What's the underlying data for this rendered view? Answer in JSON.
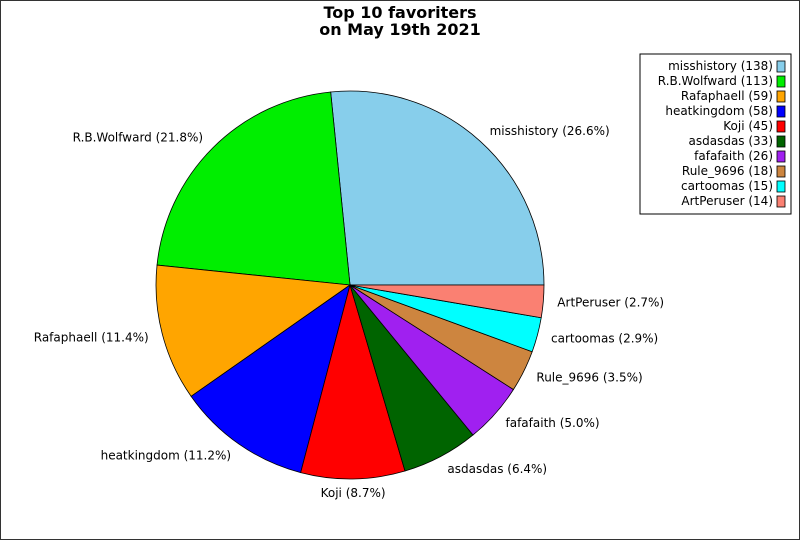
{
  "chart_data": {
    "type": "pie",
    "title_line1": "Top 10 favoriters",
    "title_line2": "on May 19th 2021",
    "slices": [
      {
        "name": "misshistory",
        "value": 138,
        "percent_label": "misshistory (26.6%)",
        "legend_label": "misshistory (138)",
        "color": "#87CEEB"
      },
      {
        "name": "R.B.Wolfward",
        "value": 113,
        "percent_label": "R.B.Wolfward (21.8%)",
        "legend_label": "R.B.Wolfward (113)",
        "color": "#00EE00"
      },
      {
        "name": "Rafaphaell",
        "value": 59,
        "percent_label": "Rafaphaell (11.4%)",
        "legend_label": "Rafaphaell (59)",
        "color": "#FFA500"
      },
      {
        "name": "heatkingdom",
        "value": 58,
        "percent_label": "heatkingdom (11.2%)",
        "legend_label": "heatkingdom (58)",
        "color": "#0000FF"
      },
      {
        "name": "Koji",
        "value": 45,
        "percent_label": "Koji (8.7%)",
        "legend_label": "Koji (45)",
        "color": "#FF0000"
      },
      {
        "name": "asdasdas",
        "value": 33,
        "percent_label": "asdasdas (6.4%)",
        "legend_label": "asdasdas (33)",
        "color": "#006400"
      },
      {
        "name": "fafafaith",
        "value": 26,
        "percent_label": "fafafaith (5.0%)",
        "legend_label": "fafafaith (26)",
        "color": "#A020F0"
      },
      {
        "name": "Rule_9696",
        "value": 18,
        "percent_label": "Rule_9696 (3.5%)",
        "legend_label": "Rule_9696 (18)",
        "color": "#CD853F"
      },
      {
        "name": "cartoomas",
        "value": 15,
        "percent_label": "cartoomas (2.9%)",
        "legend_label": "cartoomas (15)",
        "color": "#00FFFF"
      },
      {
        "name": "ArtPeruser",
        "value": 14,
        "percent_label": "ArtPeruser (2.7%)",
        "legend_label": "ArtPeruser (14)",
        "color": "#FA8072"
      }
    ],
    "legend_position": "top-right",
    "start_angle": "east",
    "direction": "counterclockwise"
  }
}
